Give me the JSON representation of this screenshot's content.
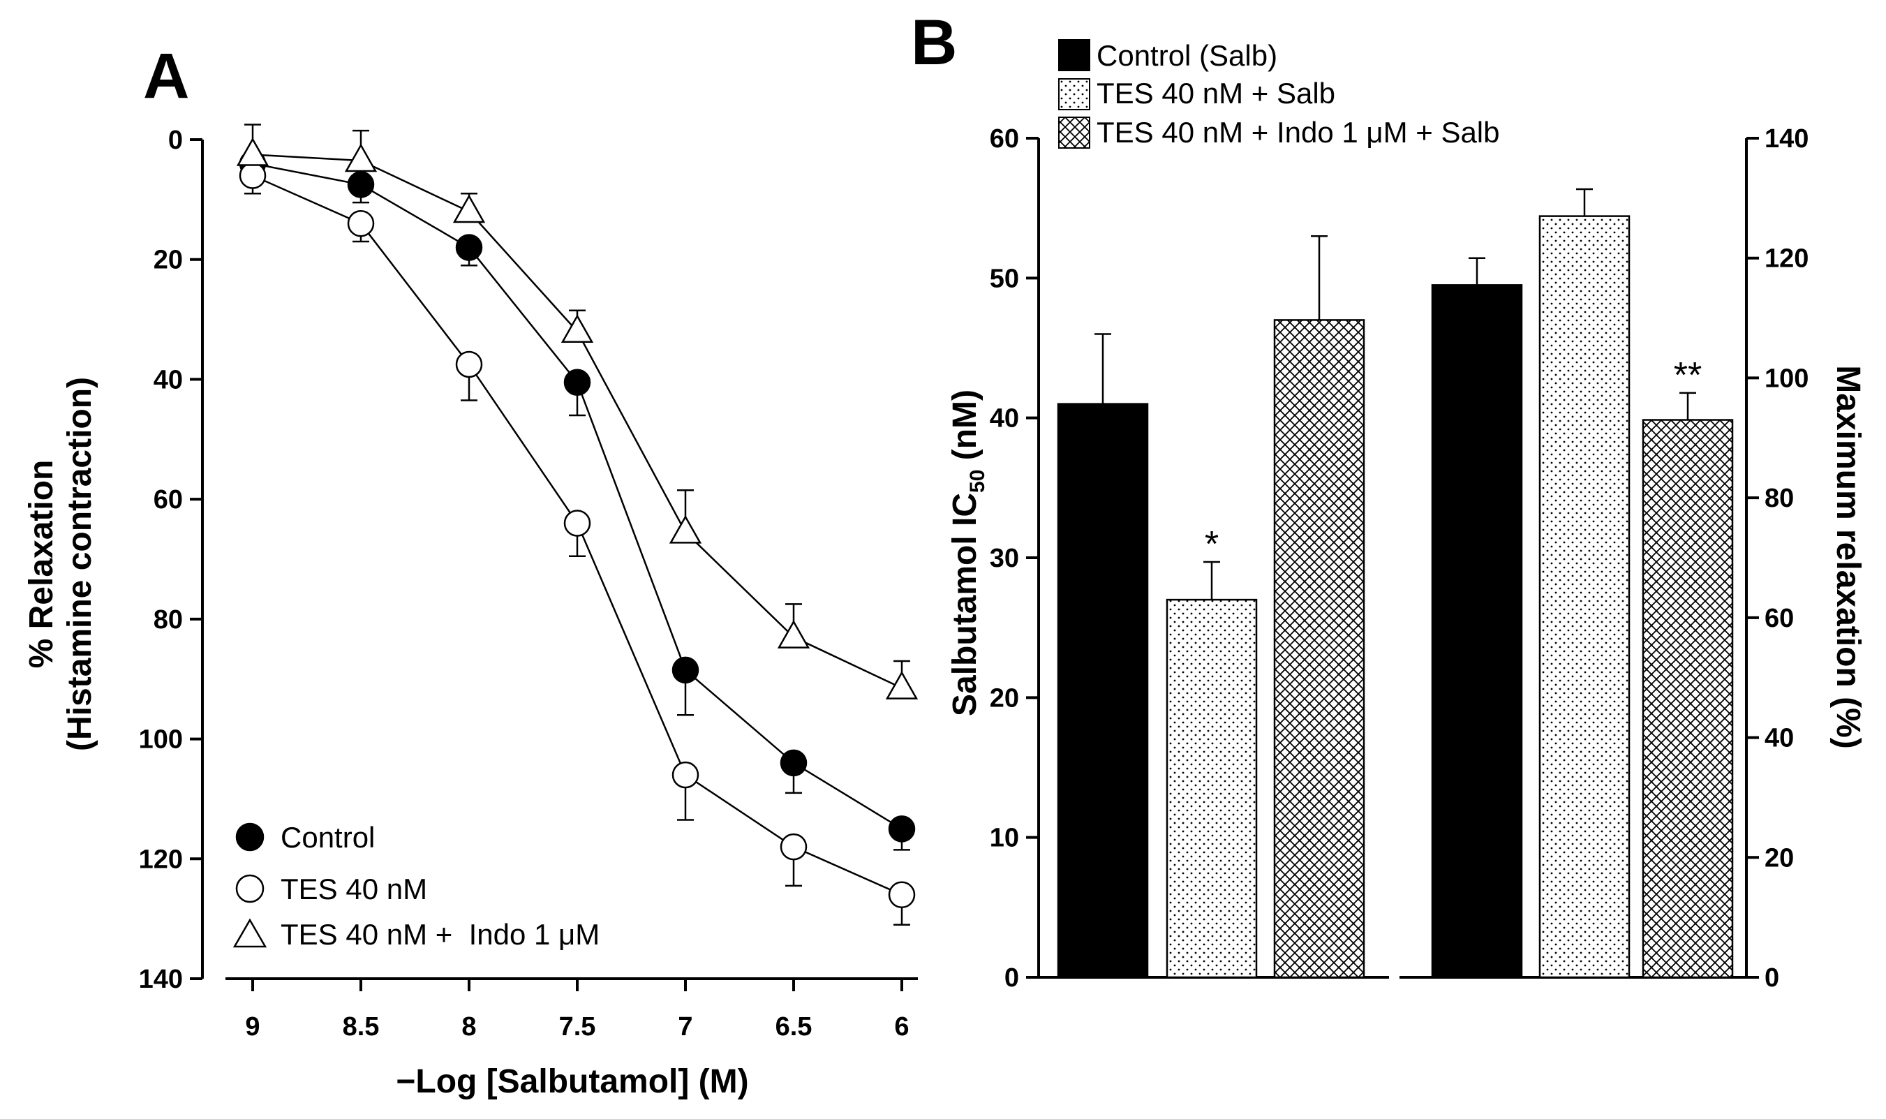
{
  "colors": {
    "foreground": "#000000",
    "background": "#ffffff",
    "control_fill": "#000000"
  },
  "chart_data": [
    {
      "panel": "A",
      "type": "line",
      "title": "",
      "xlabel": "−Log [Salbutamol] (M)",
      "ylabel_line1": "% Relaxation",
      "ylabel_line2": "(Histamine contraction)",
      "x": [
        9,
        8.5,
        8,
        7.5,
        7,
        6.5,
        6
      ],
      "xtick_labels": [
        "9",
        "8.5",
        "8",
        "7.5",
        "7",
        "6.5",
        "6"
      ],
      "ytick_labels": [
        "0",
        "20",
        "40",
        "60",
        "80",
        "100",
        "120",
        "140"
      ],
      "ylim": [
        0,
        140
      ],
      "y_inverted": true,
      "series": [
        {
          "name": "Control",
          "marker": "filled-circle",
          "values": [
            4,
            7.5,
            18,
            40.5,
            88.5,
            104,
            115
          ],
          "errors": [
            3,
            3,
            3,
            5.5,
            7.5,
            5,
            3.5
          ]
        },
        {
          "name": "TES 40 nM",
          "marker": "open-circle",
          "values": [
            6,
            14,
            37.5,
            64,
            106,
            118,
            126
          ],
          "errors": [
            3,
            3,
            6,
            5.5,
            7.5,
            6.5,
            5
          ]
        },
        {
          "name": "TES 40 nM +  Indo 1 μM",
          "marker": "open-triangle",
          "values": [
            2.5,
            3.5,
            12,
            32,
            65.5,
            83,
            91.5
          ],
          "errors": [
            5,
            5,
            3,
            3.5,
            7,
            5.5,
            4.5
          ]
        }
      ]
    },
    {
      "panel": "B",
      "type": "bar",
      "title": "",
      "ylabel_left": "Salbutamol IC",
      "ylabel_left_sub": "50",
      "ylabel_left_unit": " (nM)",
      "ylabel_right": "Maximum relaxation (%)",
      "ytick_labels_left": [
        "0",
        "10",
        "20",
        "30",
        "40",
        "50",
        "60"
      ],
      "ytick_labels_right": [
        "0",
        "20",
        "40",
        "60",
        "80",
        "100",
        "120",
        "140"
      ],
      "ylim_left": [
        0,
        60
      ],
      "ylim_right": [
        0,
        140
      ],
      "legend": [
        "Control (Salb)",
        "TES 40 nM + Salb",
        "TES 40 nM + Indo 1 μM + Salb"
      ],
      "groups": [
        {
          "name": "Salbutamol IC50 (nM)",
          "axis": "left",
          "values": [
            41,
            27,
            47
          ],
          "errors": [
            5,
            2.7,
            6
          ],
          "annotations": [
            "",
            "*",
            ""
          ]
        },
        {
          "name": "Maximum relaxation (%)",
          "axis": "right",
          "values": [
            115.5,
            127,
            93
          ],
          "errors": [
            4.5,
            4.5,
            4.5
          ],
          "annotations": [
            "",
            "",
            "**"
          ]
        }
      ]
    }
  ]
}
